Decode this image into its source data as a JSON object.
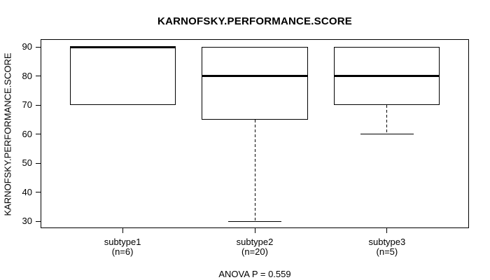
{
  "chart_data": {
    "type": "boxplot",
    "title": "KARNOFSKY.PERFORMANCE.SCORE",
    "ylabel": "KARNOFSKY.PERFORMANCE.SCORE",
    "xlabel": "",
    "annotation": "ANOVA P = 0.559",
    "grid": false,
    "legend": "none",
    "yticks": [
      30,
      40,
      50,
      60,
      70,
      80,
      90
    ],
    "ylim": [
      27.6,
      92.7
    ],
    "xlim": [
      0.38,
      3.62
    ],
    "box_width": 0.8,
    "staple_width": 0.4,
    "colors": {
      "line": "#000000",
      "box_fill": "#ffffff",
      "background": "#ffffff",
      "text": "#000000"
    },
    "groups": [
      {
        "x": 1,
        "label": "subtype1",
        "sublabel": "(n=6)",
        "n": 6,
        "whisker_low": 70,
        "q1": 70,
        "median": 90,
        "q3": 90,
        "whisker_high": 90
      },
      {
        "x": 2,
        "label": "subtype2",
        "sublabel": "(n=20)",
        "n": 20,
        "whisker_low": 30,
        "q1": 65,
        "median": 80,
        "q3": 90,
        "whisker_high": 90
      },
      {
        "x": 3,
        "label": "subtype3",
        "sublabel": "(n=5)",
        "n": 5,
        "whisker_low": 60,
        "q1": 70,
        "median": 80,
        "q3": 90,
        "whisker_high": 90
      }
    ]
  }
}
